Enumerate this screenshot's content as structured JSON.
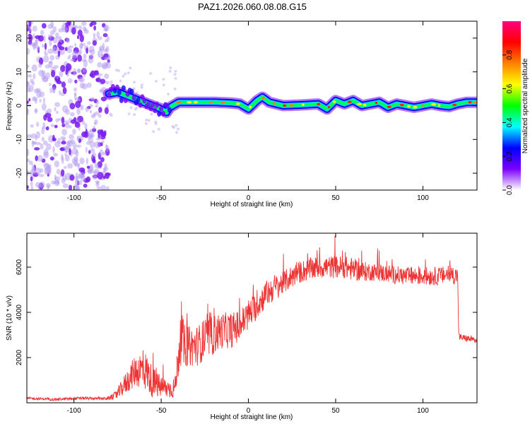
{
  "title": "PAZ1.2026.060.08.08.G15",
  "chart_data": [
    {
      "type": "heatmap",
      "title": "PAZ1.2026.060.08.08.G15",
      "xlabel": "Height of straight line (km)",
      "ylabel": "Frequency (Hz)",
      "xlim": [
        -127,
        131
      ],
      "ylim": [
        -25,
        25
      ],
      "xticks": [
        -100,
        -50,
        0,
        50,
        100
      ],
      "yticks": [
        -20,
        -10,
        0,
        10,
        20
      ],
      "colorbar": {
        "label": "Normalized spectral amplitude",
        "range": [
          0,
          1
        ],
        "ticks": [
          "0.0",
          "0.2",
          "0.4",
          "0.6",
          "0.8"
        ],
        "colors": [
          "#ffffff",
          "#7a00ff",
          "#0000ff",
          "#00ffff",
          "#00ff00",
          "#ffff00",
          "#ff8000",
          "#ff0000",
          "#ff0080"
        ]
      },
      "noise_region_x": [
        -127,
        -80
      ],
      "ridge": {
        "x": [
          -80,
          -75,
          -70,
          -65,
          -60,
          -55,
          -50,
          -47,
          -45,
          -40,
          -30,
          -20,
          -10,
          -5,
          0,
          5,
          8,
          12,
          20,
          30,
          40,
          45,
          50,
          55,
          60,
          65,
          70,
          75,
          80,
          85,
          90,
          95,
          100,
          105,
          110,
          115,
          120,
          125,
          131
        ],
        "y": [
          3.5,
          4,
          3,
          2,
          1,
          0,
          -1,
          -2,
          -0.5,
          1,
          1,
          1,
          0.8,
          0.5,
          -1,
          1.5,
          2.5,
          1,
          0,
          0.2,
          0.5,
          -1,
          1.5,
          0.5,
          1.5,
          0,
          0.5,
          1,
          -0.5,
          0.5,
          0,
          -0.5,
          0,
          0.5,
          0,
          -0.3,
          0.5,
          1,
          1
        ]
      }
    },
    {
      "type": "line",
      "xlabel": "Height of straight line (km)",
      "ylabel": "SNR (10 * v/v)",
      "xlim": [
        -127,
        131
      ],
      "ylim": [
        0,
        7500
      ],
      "xticks": [
        -100,
        -50,
        0,
        50,
        100
      ],
      "yticks": [
        2000,
        4000,
        6000
      ],
      "color": "#ee3333",
      "series": [
        {
          "x": [
            -127,
            -110,
            -95,
            -85,
            -80,
            -77,
            -75,
            -70,
            -65,
            -60,
            -57,
            -55,
            -50,
            -45,
            -42,
            -40,
            -38,
            -37,
            -35,
            -30,
            -25,
            -20,
            -15,
            -10,
            -5,
            0,
            5,
            10,
            15,
            20,
            25,
            30,
            35,
            40,
            45,
            50,
            55,
            60,
            65,
            70,
            80,
            90,
            100,
            110,
            115,
            120,
            120.5,
            121,
            125,
            131
          ],
          "y": [
            200,
            150,
            200,
            180,
            200,
            300,
            400,
            900,
            1400,
            1500,
            1200,
            900,
            700,
            600,
            700,
            2200,
            3000,
            2500,
            2500,
            2500,
            2800,
            3000,
            3200,
            3200,
            3400,
            3900,
            4300,
            4800,
            5100,
            5300,
            5600,
            5800,
            5900,
            6000,
            6000,
            6000,
            6000,
            5900,
            5800,
            5800,
            5700,
            5600,
            5600,
            5600,
            5700,
            5600,
            3000,
            2900,
            2850,
            2750
          ],
          "noise": [
            50,
            60,
            60,
            60,
            80,
            150,
            250,
            500,
            700,
            900,
            800,
            700,
            500,
            400,
            500,
            1000,
            1100,
            1000,
            900,
            900,
            900,
            900,
            800,
            800,
            700,
            700,
            600,
            600,
            600,
            500,
            500,
            500,
            500,
            500,
            500,
            500,
            500,
            500,
            450,
            400,
            400,
            400,
            400,
            400,
            400,
            400,
            200,
            150,
            150,
            150
          ]
        }
      ]
    }
  ]
}
